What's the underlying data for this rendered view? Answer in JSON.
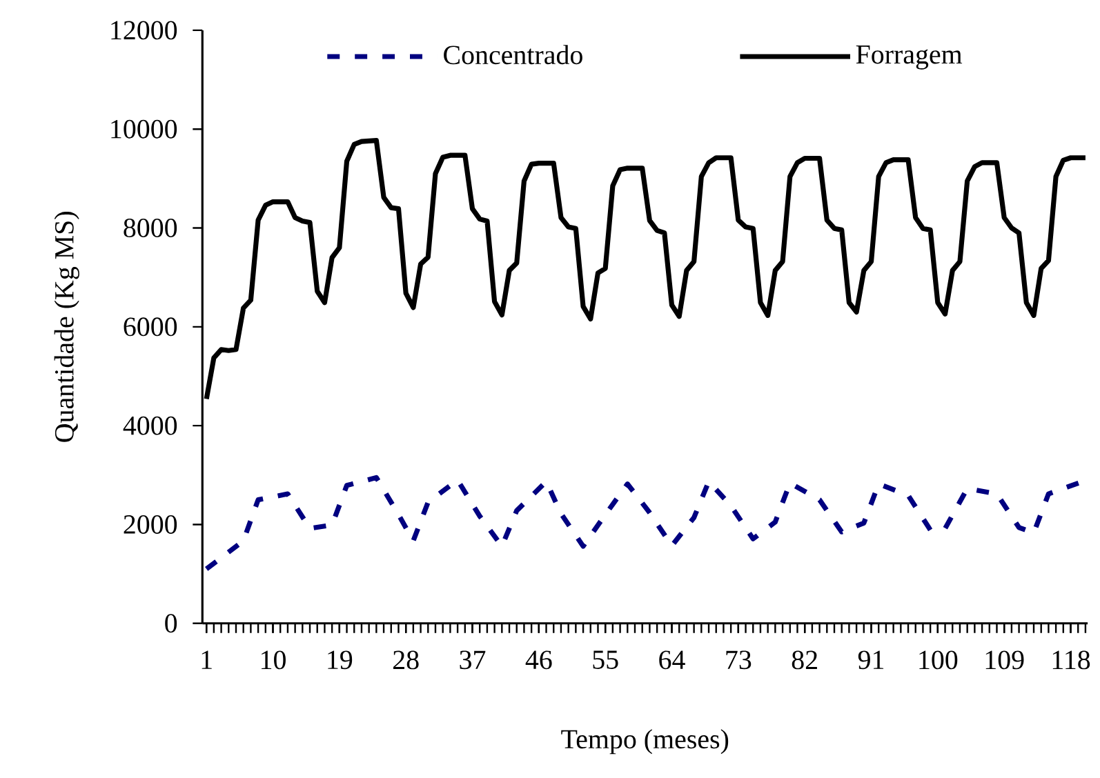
{
  "chart_data": {
    "type": "line",
    "xlabel": "Tempo (meses)",
    "ylabel": "Quantidade (Kg MS)",
    "xlim": [
      0.45,
      120.3
    ],
    "xticks": [
      1,
      10,
      19,
      28,
      37,
      46,
      55,
      64,
      73,
      82,
      91,
      100,
      109,
      118
    ],
    "ylim": [
      0,
      12000
    ],
    "yticks": [
      0,
      2000,
      4000,
      6000,
      8000,
      10000,
      12000
    ],
    "grid": false,
    "legend": "top",
    "marker": "none",
    "series": [
      {
        "name": "Concentrado",
        "color": "#000080",
        "line_style": "dashed",
        "x": [
          1,
          6,
          8,
          12,
          15,
          18,
          20,
          24,
          27,
          29,
          31,
          35,
          38,
          41,
          43,
          47,
          49,
          52,
          55,
          58,
          61,
          64,
          67,
          69,
          72,
          75,
          78,
          80,
          84,
          87,
          90,
          92,
          96,
          99,
          101,
          104,
          108,
          111,
          113,
          115,
          120
        ],
        "values": [
          1100,
          1670,
          2500,
          2620,
          1920,
          1990,
          2790,
          2950,
          2200,
          1670,
          2450,
          2900,
          2170,
          1560,
          2280,
          2870,
          2220,
          1560,
          2200,
          2820,
          2240,
          1570,
          2140,
          2870,
          2380,
          1710,
          2050,
          2840,
          2500,
          1850,
          2030,
          2820,
          2590,
          1890,
          1920,
          2730,
          2620,
          1940,
          1830,
          2620,
          2890
        ]
      },
      {
        "name": "Forragem",
        "color": "#000000",
        "line_style": "solid",
        "x": [
          1,
          2,
          3,
          4,
          5,
          6,
          7,
          8,
          9,
          10,
          11,
          12,
          13,
          14,
          15,
          16,
          17,
          18,
          19,
          20,
          21,
          22,
          23,
          24,
          25,
          26,
          27,
          28,
          29,
          30,
          31,
          32,
          33,
          34,
          35,
          36,
          37,
          38,
          39,
          40,
          41,
          42,
          43,
          44,
          45,
          46,
          47,
          48,
          49,
          50,
          51,
          52,
          53,
          54,
          55,
          56,
          57,
          58,
          59,
          60,
          61,
          62,
          63,
          64,
          65,
          66,
          67,
          68,
          69,
          70,
          71,
          72,
          73,
          74,
          75,
          76,
          77,
          78,
          79,
          80,
          81,
          82,
          83,
          84,
          85,
          86,
          87,
          88,
          89,
          90,
          91,
          92,
          93,
          94,
          95,
          96,
          97,
          98,
          99,
          100,
          101,
          102,
          103,
          104,
          105,
          106,
          107,
          108,
          109,
          110,
          111,
          112,
          113,
          114,
          115,
          116,
          117,
          118,
          119,
          120
        ],
        "values": [
          4540,
          5370,
          5540,
          5520,
          5540,
          6380,
          6540,
          8160,
          8460,
          8530,
          8530,
          8530,
          8210,
          8140,
          8110,
          6720,
          6490,
          7400,
          7600,
          9350,
          9690,
          9750,
          9760,
          9770,
          8620,
          8410,
          8390,
          6680,
          6390,
          7270,
          7410,
          9100,
          9430,
          9470,
          9470,
          9470,
          8390,
          8180,
          8140,
          6510,
          6240,
          7140,
          7290,
          8950,
          9290,
          9310,
          9310,
          9310,
          8210,
          8020,
          7990,
          6410,
          6160,
          7090,
          7180,
          8850,
          9180,
          9210,
          9210,
          9210,
          8150,
          7950,
          7900,
          6440,
          6210,
          7140,
          7320,
          9040,
          9320,
          9420,
          9420,
          9420,
          8160,
          8020,
          7990,
          6490,
          6230,
          7140,
          7320,
          9040,
          9320,
          9410,
          9410,
          9410,
          8160,
          7990,
          7960,
          6490,
          6300,
          7140,
          7320,
          9040,
          9320,
          9380,
          9380,
          9380,
          8210,
          7990,
          7960,
          6490,
          6260,
          7140,
          7320,
          8950,
          9240,
          9320,
          9320,
          9320,
          8210,
          8000,
          7900,
          6490,
          6230,
          7180,
          7340,
          9040,
          9370,
          9420,
          9420,
          9420
        ]
      }
    ]
  }
}
